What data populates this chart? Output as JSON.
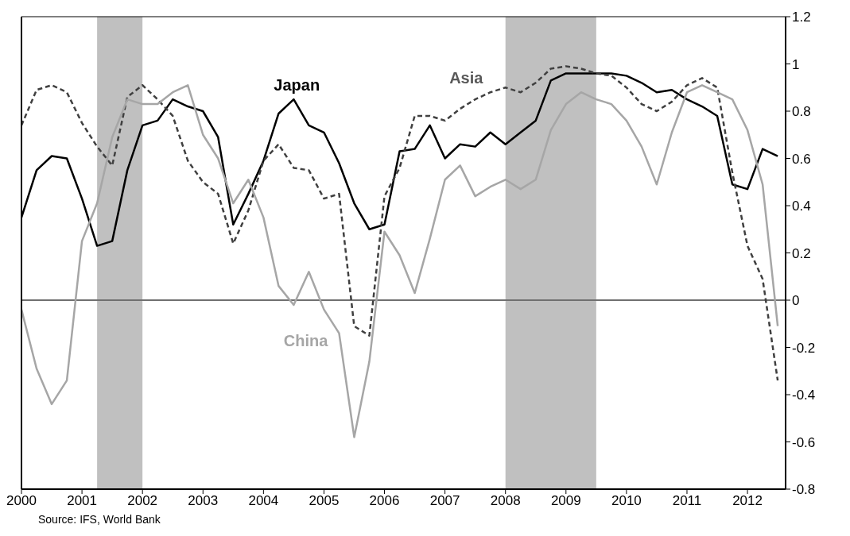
{
  "chart_data": {
    "type": "line",
    "x": [
      2000,
      2000.25,
      2000.5,
      2000.75,
      2001,
      2001.25,
      2001.5,
      2001.75,
      2002,
      2002.25,
      2002.5,
      2002.75,
      2003,
      2003.25,
      2003.5,
      2003.75,
      2004,
      2004.25,
      2004.5,
      2004.75,
      2005,
      2005.25,
      2005.5,
      2005.75,
      2006,
      2006.25,
      2006.5,
      2006.75,
      2007,
      2007.25,
      2007.5,
      2007.75,
      2008,
      2008.25,
      2008.5,
      2008.75,
      2009,
      2009.25,
      2009.5,
      2009.75,
      2010,
      2010.25,
      2010.5,
      2010.75,
      2011,
      2011.25,
      2011.5,
      2011.75,
      2012,
      2012.25,
      2012.5
    ],
    "series": [
      {
        "name": "Japan",
        "color": "#000000",
        "line_style": "solid",
        "values": [
          0.35,
          0.55,
          0.61,
          0.6,
          0.43,
          0.23,
          0.25,
          0.55,
          0.74,
          0.76,
          0.85,
          0.82,
          0.8,
          0.69,
          0.32,
          0.45,
          0.59,
          0.79,
          0.85,
          0.74,
          0.71,
          0.58,
          0.41,
          0.3,
          0.32,
          0.63,
          0.64,
          0.74,
          0.6,
          0.66,
          0.65,
          0.71,
          0.66,
          0.71,
          0.76,
          0.93,
          0.96,
          0.96,
          0.96,
          0.96,
          0.95,
          0.92,
          0.88,
          0.89,
          0.85,
          0.82,
          0.78,
          0.49,
          0.47,
          0.64,
          0.61
        ]
      },
      {
        "name": "Asia",
        "color": "#404040",
        "line_style": "dashed",
        "values": [
          0.74,
          0.89,
          0.91,
          0.88,
          0.75,
          0.65,
          0.57,
          0.86,
          0.91,
          0.85,
          0.78,
          0.59,
          0.5,
          0.45,
          0.24,
          0.38,
          0.59,
          0.66,
          0.56,
          0.55,
          0.43,
          0.45,
          -0.11,
          -0.15,
          0.44,
          0.56,
          0.78,
          0.78,
          0.76,
          0.81,
          0.85,
          0.88,
          0.9,
          0.88,
          0.92,
          0.98,
          0.99,
          0.98,
          0.96,
          0.95,
          0.9,
          0.83,
          0.8,
          0.84,
          0.91,
          0.94,
          0.9,
          0.54,
          0.23,
          0.09,
          -0.34
        ]
      },
      {
        "name": "China",
        "color": "#a6a6a6",
        "line_style": "solid",
        "values": [
          -0.04,
          -0.29,
          -0.44,
          -0.34,
          0.25,
          0.41,
          0.69,
          0.85,
          0.83,
          0.83,
          0.88,
          0.91,
          0.7,
          0.6,
          0.41,
          0.51,
          0.35,
          0.06,
          -0.02,
          0.12,
          -0.04,
          -0.14,
          -0.58,
          -0.26,
          0.29,
          0.19,
          0.03,
          0.26,
          0.51,
          0.57,
          0.44,
          0.48,
          0.51,
          0.47,
          0.51,
          0.72,
          0.83,
          0.88,
          0.85,
          0.83,
          0.76,
          0.65,
          0.49,
          0.71,
          0.88,
          0.91,
          0.88,
          0.85,
          0.72,
          0.49,
          -0.11
        ]
      }
    ],
    "xlim": [
      2000,
      2012.63
    ],
    "xticks": [
      2000,
      2001,
      2002,
      2003,
      2004,
      2005,
      2006,
      2007,
      2008,
      2009,
      2010,
      2011,
      2012
    ],
    "ylim": [
      -0.8,
      1.2
    ],
    "yticks": [
      -0.8,
      -0.6,
      -0.4,
      -0.2,
      0,
      0.2,
      0.4,
      0.6,
      0.8,
      1,
      1.2
    ],
    "bands": [
      {
        "axis": "x",
        "from": 2001.25,
        "to": 2002,
        "color": "#c0c0c0"
      },
      {
        "axis": "x",
        "from": 2008,
        "to": 2009.5,
        "color": "#c0c0c0"
      }
    ],
    "ref_lines": [
      {
        "axis": "y",
        "value": 0,
        "color": "#707070"
      }
    ],
    "annotations": [
      "Source: IFS, World Bank"
    ]
  }
}
